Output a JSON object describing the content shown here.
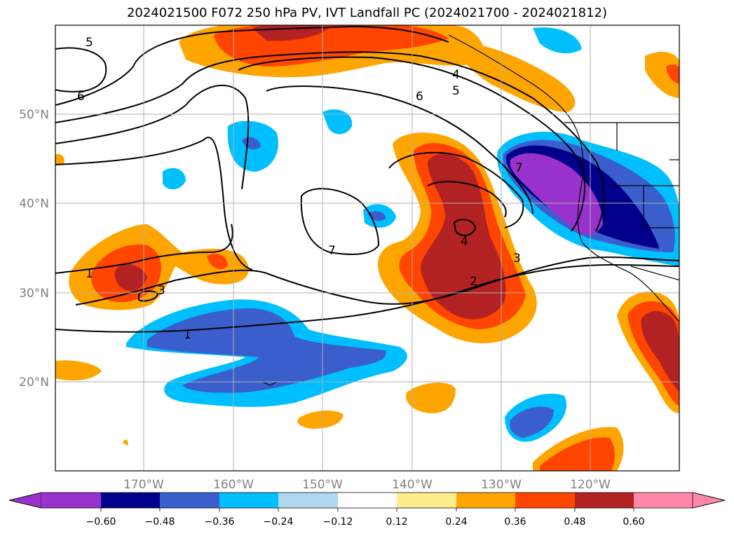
{
  "title": "2024021500 F072 250 hPa PV, IVT Landfall PC (2024021700 - 2024021812)",
  "map": {
    "lon_ticks": [
      "170°W",
      "160°W",
      "150°W",
      "140°W",
      "130°W",
      "120°W"
    ],
    "lat_ticks": [
      "50°N",
      "40°N",
      "30°N",
      "20°N"
    ],
    "contour_labels": [
      "5",
      "6",
      "4",
      "5",
      "6",
      "7",
      "7",
      "1",
      "3",
      "4",
      "3",
      "2",
      "1"
    ]
  },
  "colorbar": {
    "ticks": [
      "−0.60",
      "−0.48",
      "−0.36",
      "−0.24",
      "−0.12",
      "0.12",
      "0.24",
      "0.36",
      "0.48",
      "0.60"
    ],
    "colors": [
      "#9932cc",
      "#00008b",
      "#3a5fcd",
      "#00bfff",
      "#add8f0",
      "#ffffff",
      "#ffec8b",
      "#ffa500",
      "#ff4500",
      "#b22222",
      "#ff88aa"
    ]
  }
}
